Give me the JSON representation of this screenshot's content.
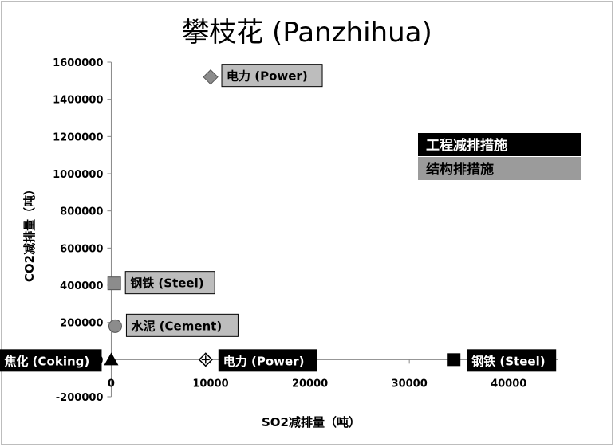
{
  "chart_data": {
    "type": "scatter",
    "title": "攀枝花 (Panzhihua)",
    "xlabel": "SO2减排量（吨）",
    "ylabel": "CO2减排量（吨）",
    "xlim": [
      -1000,
      45000
    ],
    "ylim": [
      -200000,
      1600000
    ],
    "xticks": [
      "0",
      "10000",
      "20000",
      "30000",
      "40000"
    ],
    "xtick_values": [
      0,
      10000,
      20000,
      30000,
      40000
    ],
    "yticks": [
      "-200000",
      "0",
      "200000",
      "400000",
      "600000",
      "800000",
      "1000000",
      "1200000",
      "1400000",
      "1600000"
    ],
    "ytick_values": [
      -200000,
      0,
      200000,
      400000,
      600000,
      800000,
      1000000,
      1200000,
      1400000,
      1600000
    ],
    "grid": false,
    "legend": {
      "position": "right",
      "entries": [
        {
          "label": "工程减排措施",
          "color": "#000000"
        },
        {
          "label": "结构排措施",
          "color": "#9b9b9b"
        }
      ]
    },
    "series": [
      {
        "name": "工程减排措施",
        "color": "#000000",
        "points": [
          {
            "label": "焦化 (Coking)",
            "x": 0,
            "y": 0,
            "marker": "triangle"
          },
          {
            "label": "电力 (Power)",
            "x": 9500,
            "y": 0,
            "marker": "diamond-plus"
          },
          {
            "label": "钢铁 (Steel)",
            "x": 34500,
            "y": 0,
            "marker": "square"
          }
        ]
      },
      {
        "name": "结构排措施",
        "color": "#8c8c8c",
        "points": [
          {
            "label": "电力 (Power)",
            "x": 10000,
            "y": 1520000,
            "marker": "diamond"
          },
          {
            "label": "钢铁 (Steel)",
            "x": 300,
            "y": 410000,
            "marker": "square"
          },
          {
            "label": "水泥 (Cement)",
            "x": 400,
            "y": 180000,
            "marker": "circle"
          }
        ]
      }
    ]
  }
}
